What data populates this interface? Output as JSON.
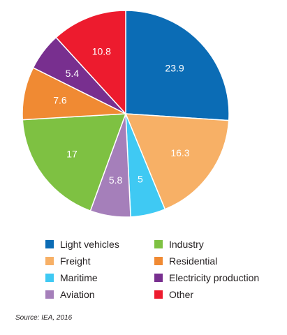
{
  "chart_data": {
    "type": "pie",
    "slices": [
      {
        "name": "Light vehicles",
        "value": 23.9,
        "label": "23.9",
        "color": "#0b6cb5"
      },
      {
        "name": "Freight",
        "value": 16.3,
        "label": "16.3",
        "color": "#f7b066"
      },
      {
        "name": "Maritime",
        "value": 5,
        "label": "5",
        "color": "#3fc9f3"
      },
      {
        "name": "Aviation",
        "value": 5.8,
        "label": "5.8",
        "color": "#a57fba"
      },
      {
        "name": "Industry",
        "value": 17,
        "label": "17",
        "color": "#7ec142"
      },
      {
        "name": "Residential",
        "value": 7.6,
        "label": "7.6",
        "color": "#f08a33"
      },
      {
        "name": "Electricity production",
        "value": 5.4,
        "label": "5.4",
        "color": "#782f8f"
      },
      {
        "name": "Other",
        "value": 10.8,
        "label": "10.8",
        "color": "#ed1b2e"
      }
    ],
    "start_angle": "12 o'clock",
    "direction": "clockwise",
    "legend_placement": "bottom"
  },
  "legend": {
    "items": [
      {
        "label": "Light vehicles",
        "color": "#0b6cb5"
      },
      {
        "label": "Industry",
        "color": "#7ec142"
      },
      {
        "label": "Freight",
        "color": "#f7b066"
      },
      {
        "label": "Residential",
        "color": "#f08a33"
      },
      {
        "label": "Maritime",
        "color": "#3fc9f3"
      },
      {
        "label": "Electricity production",
        "color": "#782f8f"
      },
      {
        "label": "Aviation",
        "color": "#a57fba"
      },
      {
        "label": "Other",
        "color": "#ed1b2e"
      }
    ]
  },
  "source": "Source: IEA, 2016"
}
